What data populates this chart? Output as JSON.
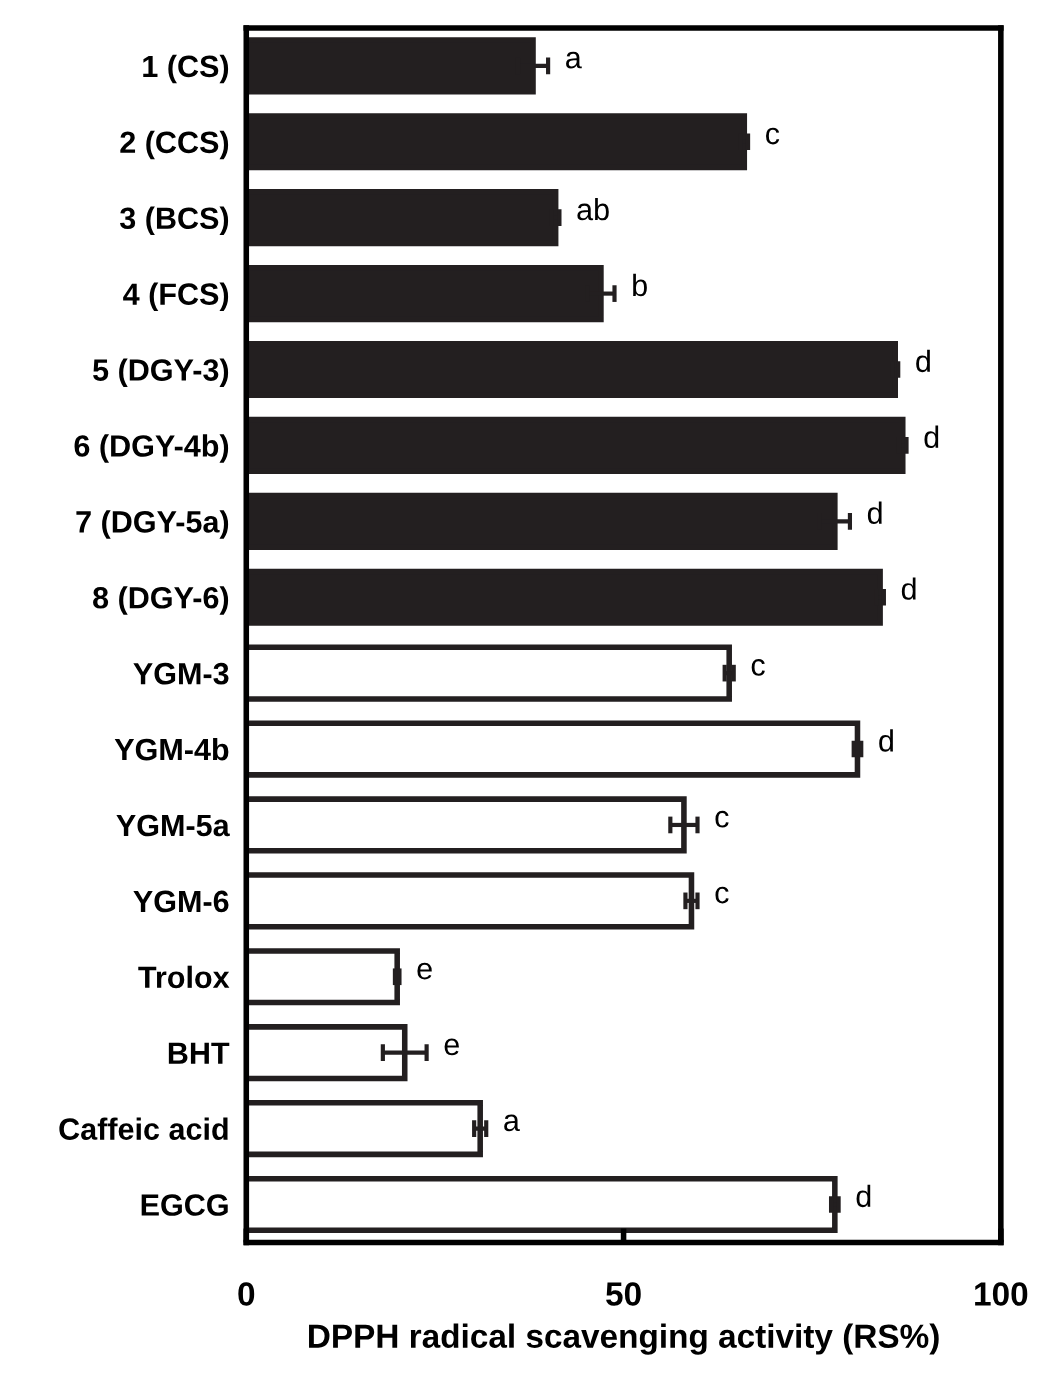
{
  "chart_data": {
    "type": "bar",
    "orientation": "horizontal",
    "xlabel": "DPPH radical scavenging activity (RS%)",
    "categories": [
      "1 (CS)",
      "2 (CCS)",
      "3 (BCS)",
      "4 (FCS)",
      "5 (DGY-3)",
      "6 (DGY-4b)",
      "7 (DGY-5a)",
      "8 (DGY-6)",
      "YGM-3",
      "YGM-4b",
      "YGM-5a",
      "YGM-6",
      "Trolox",
      "BHT",
      "Caffeic acid",
      "EGCG"
    ],
    "values": [
      38,
      66,
      41,
      47,
      86,
      87,
      78,
      84,
      64,
      81,
      58,
      59,
      20,
      21,
      31,
      78
    ],
    "errors": [
      2,
      0.5,
      0.5,
      1.8,
      0.4,
      0.5,
      2,
      0.5,
      0.6,
      0.5,
      1.8,
      0.8,
      0.3,
      2.9,
      0.8,
      0.5
    ],
    "colors": [
      "#231f20",
      "#231f20",
      "#231f20",
      "#231f20",
      "#231f20",
      "#231f20",
      "#231f20",
      "#231f20",
      "#ffffff",
      "#ffffff",
      "#ffffff",
      "#ffffff",
      "#ffffff",
      "#ffffff",
      "#ffffff",
      "#ffffff"
    ],
    "xlim": [
      0,
      100
    ],
    "xticks": [
      0,
      50,
      100
    ],
    "grid": false,
    "legend": false,
    "annotations": [
      {
        "text": "a",
        "x": 40,
        "y": "1 (CS)"
      },
      {
        "text": "c",
        "x": 66.5,
        "y": "2 (CCS)"
      },
      {
        "text": "ab",
        "x": 41.5,
        "y": "3 (BCS)"
      },
      {
        "text": "b",
        "x": 48.8,
        "y": "4 (FCS)"
      },
      {
        "text": "d",
        "x": 86.4,
        "y": "5 (DGY-3)"
      },
      {
        "text": "d",
        "x": 87.5,
        "y": "6 (DGY-4b)"
      },
      {
        "text": "d",
        "x": 80,
        "y": "7 (DGY-5a)"
      },
      {
        "text": "d",
        "x": 84.5,
        "y": "8 (DGY-6)"
      },
      {
        "text": "c",
        "x": 64.6,
        "y": "YGM-3"
      },
      {
        "text": "d",
        "x": 81.5,
        "y": "YGM-4b"
      },
      {
        "text": "c",
        "x": 59.8,
        "y": "YGM-5a"
      },
      {
        "text": "c",
        "x": 59.8,
        "y": "YGM-6"
      },
      {
        "text": "e",
        "x": 20.3,
        "y": "Trolox"
      },
      {
        "text": "e",
        "x": 23.9,
        "y": "BHT"
      },
      {
        "text": "a",
        "x": 31.8,
        "y": "Caffeic acid"
      },
      {
        "text": "d",
        "x": 78.5,
        "y": "EGCG"
      }
    ]
  }
}
